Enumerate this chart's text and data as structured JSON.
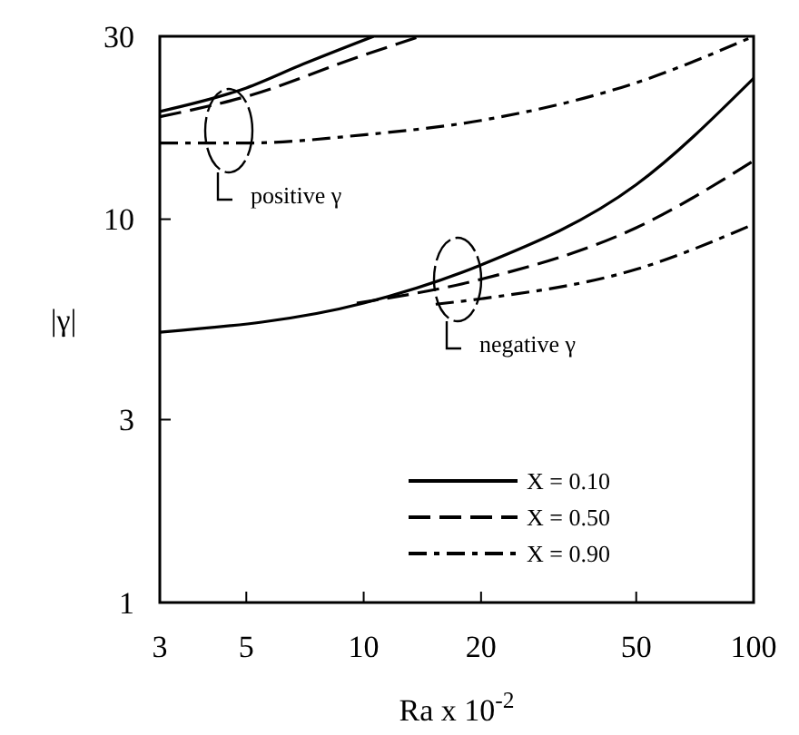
{
  "chart_data": {
    "type": "line",
    "xlabel": "Ra x 10$^{-2}$",
    "ylabel": "|γ|",
    "log": "xy",
    "xlim": [
      3,
      100
    ],
    "ylim": [
      1,
      30
    ],
    "xticks": [
      3,
      5,
      10,
      20,
      50,
      100
    ],
    "yticks": [
      1,
      3,
      10,
      30
    ],
    "grid": false,
    "legend": "right",
    "series": [
      {
        "name": "X = 0.10",
        "color": "#000000",
        "line_style": "solid",
        "x": [
          3,
          5,
          7,
          10.6
        ],
        "values": [
          19.1,
          22,
          25.4,
          30
        ]
      },
      {
        "name": "X = 0.50",
        "color": "#000000",
        "line_style": "dashed",
        "x": [
          3,
          5,
          10,
          14
        ],
        "values": [
          18.5,
          20.9,
          26.8,
          30
        ]
      },
      {
        "name": "X = 0.90",
        "color": "#000000",
        "line_style": "dashdot",
        "x": [
          3,
          5,
          10,
          20,
          50,
          100
        ],
        "values": [
          15.8,
          15.8,
          16.6,
          18.1,
          22.7,
          30
        ]
      },
      {
        "color": "#000000",
        "line_style": "solid",
        "x": [
          3,
          10,
          20,
          50,
          100
        ],
        "values": [
          5.07,
          6.04,
          7.6,
          12.3,
          23.3
        ]
      },
      {
        "color": "#000000",
        "line_style": "dashed",
        "x": [
          9.6,
          20,
          50,
          100
        ],
        "values": [
          6.04,
          6.97,
          9.5,
          14.2
        ]
      },
      {
        "color": "#000000",
        "line_style": "dashdot",
        "x": [
          15.3,
          20,
          50,
          100
        ],
        "values": [
          6,
          6.2,
          7.4,
          9.7
        ]
      }
    ],
    "annotations": [
      "positive γ",
      "negative γ"
    ]
  }
}
